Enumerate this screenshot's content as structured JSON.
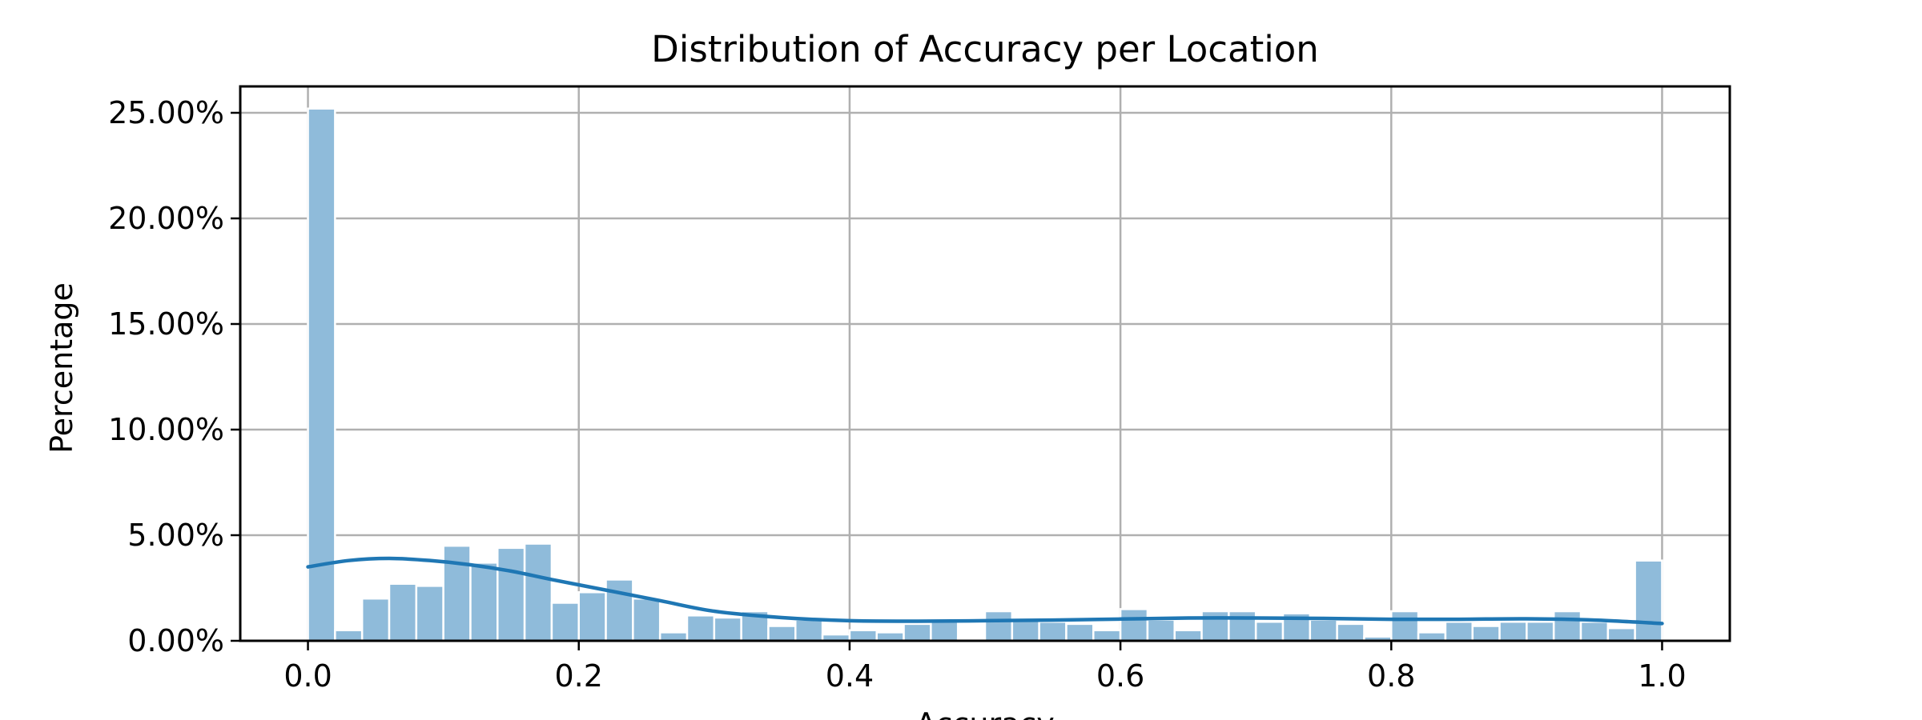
{
  "chart_data": {
    "type": "bar",
    "title": "Distribution of Accuracy per Location",
    "xlabel": "Accuracy",
    "ylabel": "Percentage",
    "xlim": [
      -0.05,
      1.05
    ],
    "ylim": [
      0,
      0.2625
    ],
    "xticks": [
      0.0,
      0.2,
      0.4,
      0.6,
      0.8,
      1.0
    ],
    "xtick_labels": [
      "0.0",
      "0.2",
      "0.4",
      "0.6",
      "0.8",
      "1.0"
    ],
    "yticks": [
      0,
      0.05,
      0.1,
      0.15,
      0.2,
      0.25
    ],
    "ytick_labels": [
      "0.00%",
      "5.00%",
      "10.00%",
      "15.00%",
      "20.00%",
      "25.00%"
    ],
    "grid": true,
    "bar_color": "#8fbbda",
    "line_color": "#1f77b4",
    "bins": {
      "start": 0.0,
      "width": 0.02,
      "values": [
        0.252,
        0.005,
        0.02,
        0.027,
        0.026,
        0.045,
        0.037,
        0.044,
        0.046,
        0.018,
        0.023,
        0.029,
        0.02,
        0.004,
        0.012,
        0.011,
        0.014,
        0.007,
        0.01,
        0.003,
        0.005,
        0.004,
        0.008,
        0.009,
        0.001,
        0.014,
        0.01,
        0.009,
        0.008,
        0.005,
        0.015,
        0.01,
        0.005,
        0.014,
        0.014,
        0.009,
        0.013,
        0.01,
        0.008,
        0.002,
        0.014,
        0.004,
        0.009,
        0.007,
        0.009,
        0.009,
        0.014,
        0.009,
        0.006,
        0.038
      ]
    },
    "kde": {
      "x": [
        0.0,
        0.03,
        0.06,
        0.09,
        0.12,
        0.15,
        0.18,
        0.22,
        0.26,
        0.3,
        0.35,
        0.4,
        0.45,
        0.5,
        0.55,
        0.6,
        0.65,
        0.7,
        0.75,
        0.8,
        0.85,
        0.9,
        0.95,
        1.0
      ],
      "y": [
        0.035,
        0.038,
        0.039,
        0.038,
        0.036,
        0.033,
        0.029,
        0.024,
        0.019,
        0.014,
        0.011,
        0.0095,
        0.0093,
        0.0095,
        0.0098,
        0.0103,
        0.0108,
        0.0108,
        0.0106,
        0.0102,
        0.0102,
        0.0104,
        0.0098,
        0.0082
      ]
    }
  }
}
